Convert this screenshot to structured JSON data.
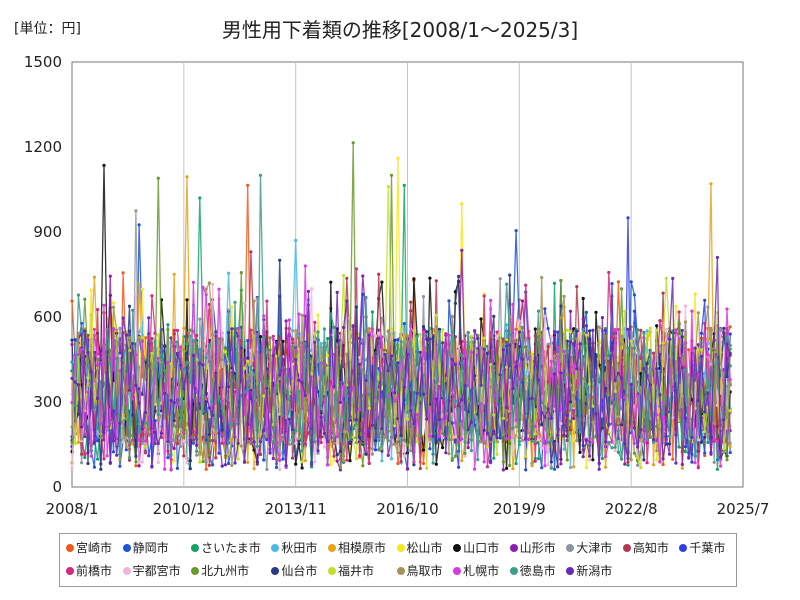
{
  "unit_label": "[単位：円]",
  "chart_data": {
    "type": "line",
    "title": "男性用下着類の推移[2008/1～2025/3]",
    "xlabel": "",
    "ylabel": "",
    "ylim": [
      0,
      1500
    ],
    "yticks": [
      0,
      300,
      600,
      900,
      1200,
      1500
    ],
    "xlim": [
      "2008/1",
      "2025/7"
    ],
    "xticks": [
      "2008/1",
      "2010/12",
      "2013/11",
      "2016/10",
      "2019/9",
      "2022/8",
      "2025/7"
    ],
    "grid": "vertical",
    "legend_position": "bottom",
    "period": [
      "2008/1",
      "2025/3"
    ],
    "baseline_range": [
      150,
      560
    ],
    "series": [
      {
        "name": "宮崎市",
        "color": "#ee5a1e",
        "peaks": [
          [
            "2012/8",
            1065
          ],
          [
            "2025/3",
            565
          ]
        ]
      },
      {
        "name": "静岡市",
        "color": "#1f55d6",
        "peaks": [
          [
            "2009/10",
            925
          ],
          [
            "2019/8",
            905
          ]
        ]
      },
      {
        "name": "さいたま市",
        "color": "#13a36a",
        "peaks": [
          [
            "2011/5",
            1020
          ],
          [
            "2016/9",
            1065
          ]
        ]
      },
      {
        "name": "秋田市",
        "color": "#4db8e8",
        "peaks": [
          [
            "2013/11",
            870
          ]
        ]
      },
      {
        "name": "相模原市",
        "color": "#e8a21b",
        "peaks": [
          [
            "2011/1",
            1095
          ],
          [
            "2024/9",
            1070
          ]
        ]
      },
      {
        "name": "松山市",
        "color": "#f5e81e",
        "peaks": [
          [
            "2016/7",
            1160
          ],
          [
            "2018/3",
            1000
          ]
        ]
      },
      {
        "name": "山口市",
        "color": "#111111",
        "peaks": [
          [
            "2008/11",
            1135
          ]
        ]
      },
      {
        "name": "山形市",
        "color": "#8f1cae",
        "peaks": [
          [
            "2018/3",
            835
          ]
        ]
      },
      {
        "name": "大津市",
        "color": "#8d95a3",
        "peaks": [
          [
            "2009/9",
            975
          ]
        ]
      },
      {
        "name": "高知市",
        "color": "#b33a4c",
        "peaks": [
          [
            "2012/9",
            830
          ]
        ]
      },
      {
        "name": "千葉市",
        "color": "#2f40e0",
        "peaks": [
          [
            "2022/7",
            950
          ]
        ]
      },
      {
        "name": "前橋市",
        "color": "#d6287e",
        "peaks": [
          [
            "2015/6",
            770
          ]
        ]
      },
      {
        "name": "宇都宮市",
        "color": "#f2b6d8",
        "peaks": [
          [
            "2014/4",
            700
          ]
        ]
      },
      {
        "name": "北九州市",
        "color": "#6a9a2a",
        "peaks": [
          [
            "2015/5",
            1215
          ],
          [
            "2010/4",
            1090
          ],
          [
            "2016/5",
            1100
          ]
        ]
      },
      {
        "name": "仙台市",
        "color": "#2b3a86",
        "peaks": [
          [
            "2013/6",
            800
          ]
        ]
      },
      {
        "name": "福井市",
        "color": "#c3e030",
        "peaks": [
          [
            "2016/4",
            1060
          ]
        ]
      },
      {
        "name": "鳥取市",
        "color": "#a3955a",
        "peaks": [
          [
            "2011/8",
            720
          ]
        ]
      },
      {
        "name": "札幌市",
        "color": "#d63ce0",
        "peaks": [
          [
            "2014/2",
            780
          ]
        ]
      },
      {
        "name": "徳島市",
        "color": "#3a9e8a",
        "peaks": [
          [
            "2012/12",
            1100
          ]
        ]
      },
      {
        "name": "新潟市",
        "color": "#6a2ab8",
        "peaks": [
          [
            "2024/11",
            810
          ]
        ]
      }
    ]
  }
}
